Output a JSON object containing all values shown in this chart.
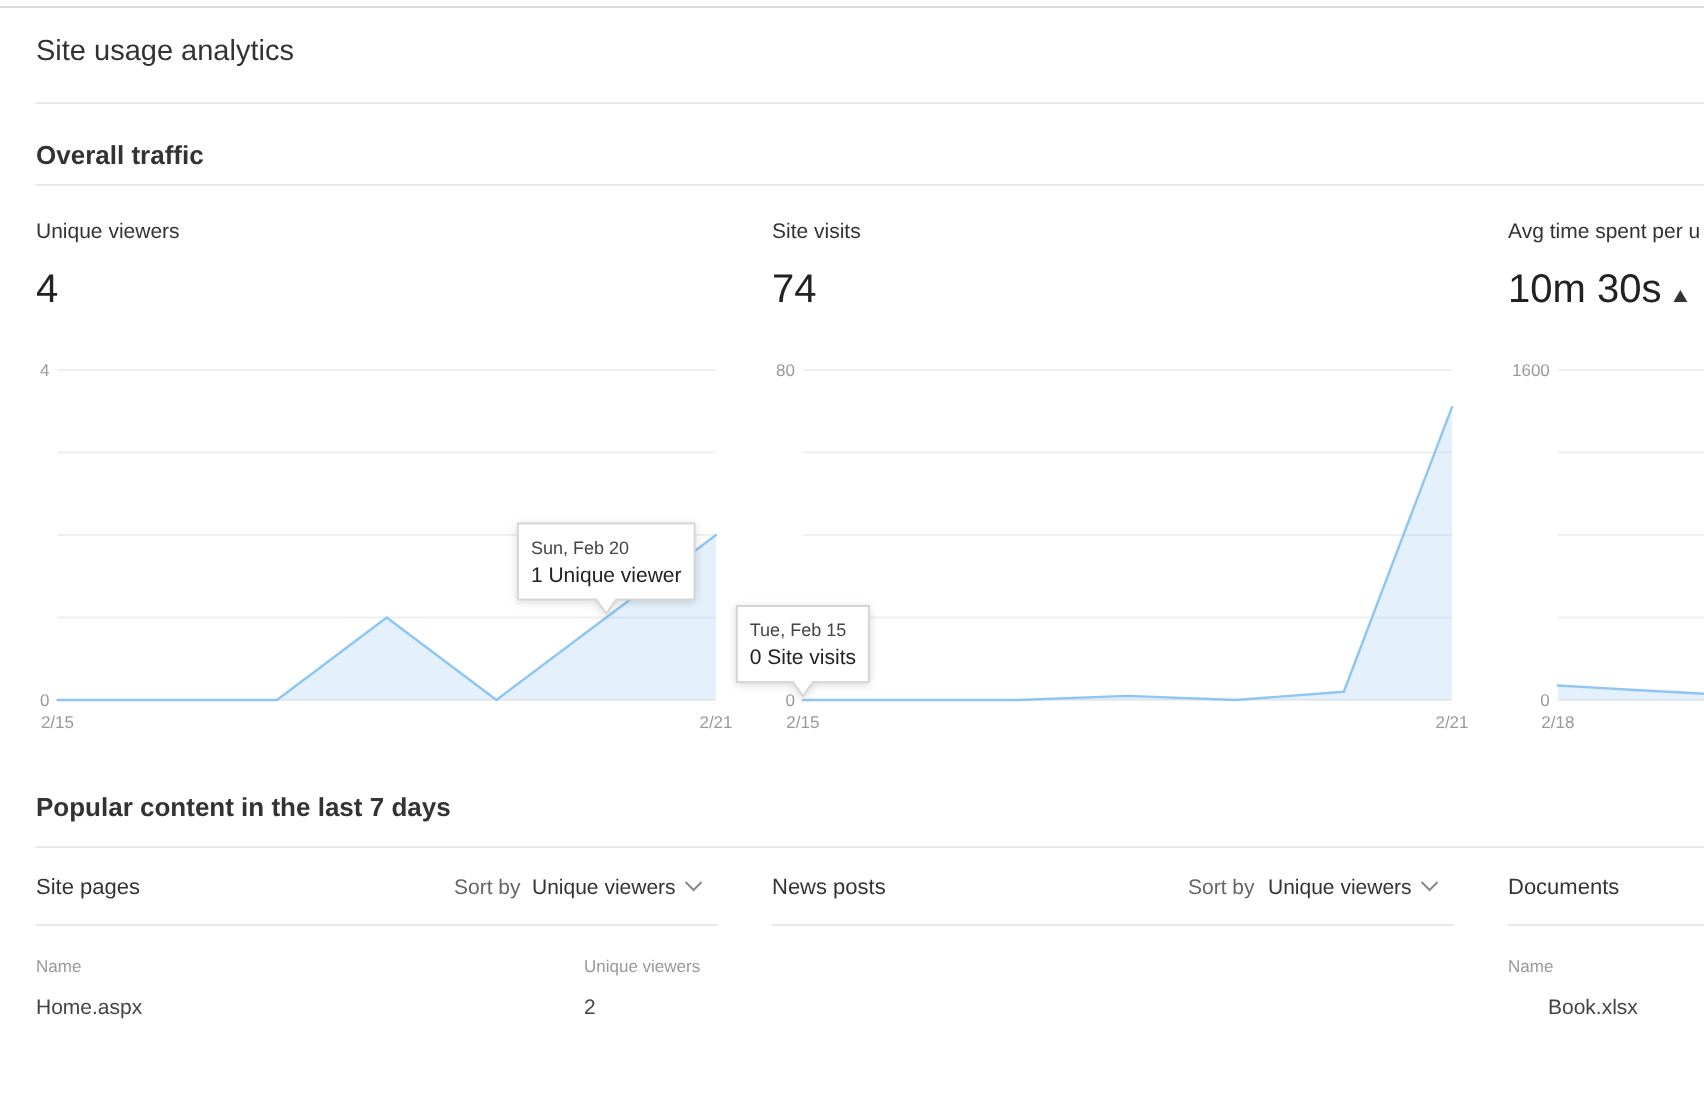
{
  "chart_data": [
    {
      "type": "other",
      "title": "Site usage analytics",
      "subtitle": "Overall traffic"
    },
    {
      "type": "area",
      "title": "Unique viewers",
      "subtitle": "4",
      "x": [
        "--02-15",
        "--02-16",
        "--02-17",
        "--02-18",
        "--02-19",
        "--02-20",
        "--02-21"
      ],
      "values": [
        0,
        0,
        0,
        1,
        0,
        1,
        2
      ],
      "color": "#8ec5f2",
      "xlim": [
        "--02-15",
        "--02-21"
      ],
      "xticks": [
        {
          "value": "--02-15",
          "label": "2/15"
        },
        {
          "value": "--02-21",
          "label": "2/21"
        }
      ],
      "ylim": [
        0,
        4
      ],
      "yticks": [
        0,
        {
          "value": 1,
          "label": null
        },
        {
          "value": 2,
          "label": null
        },
        {
          "value": 3,
          "label": null
        },
        4
      ],
      "grid": "y",
      "annotations": [
        "Sun, Feb 20",
        {
          "text": "1 Unique viewer",
          "x": "--02-20",
          "y": 1
        }
      ]
    },
    {
      "type": "area",
      "title": "Site visits",
      "subtitle": "74",
      "x": [
        "--02-15",
        "--02-16",
        "--02-17",
        "--02-18",
        "--02-19",
        "--02-20",
        "--02-21"
      ],
      "values": [
        0,
        0,
        0,
        1,
        0,
        2,
        71
      ],
      "color": "#8ec5f2",
      "xlim": [
        "--02-15",
        "--02-21"
      ],
      "xticks": [
        {
          "value": "--02-15",
          "label": "2/15"
        },
        {
          "value": "--02-21",
          "label": "2/21"
        }
      ],
      "ylim": [
        0,
        80
      ],
      "yticks": [
        0,
        {
          "value": 20,
          "label": null
        },
        {
          "value": 40,
          "label": null
        },
        {
          "value": 60,
          "label": null
        },
        80
      ],
      "grid": "y",
      "annotations": [
        "Tue, Feb 15",
        {
          "text": "0 Site visits",
          "x": "--02-15",
          "y": 0
        }
      ]
    },
    {
      "type": "area",
      "title": "Avg time spent per u",
      "subtitle": "10m 30s",
      "categories": [
        "2/18",
        null,
        null,
        null,
        null
      ],
      "values": [
        70,
        60,
        50,
        40,
        30
      ],
      "color": "#8ec5f2",
      "ylim": [
        0,
        1600
      ],
      "yticks": [
        0,
        {
          "value": 400,
          "label": null
        },
        {
          "value": 800,
          "label": null
        },
        {
          "value": 1200,
          "label": null
        },
        1600
      ],
      "grid": "y"
    },
    {
      "type": "other",
      "title": "Popular content in the last 7 days",
      "annotations": [
        "Site pages",
        "Sort by",
        "Unique viewers",
        "Name",
        "Unique viewers",
        "Home.aspx",
        "2",
        "News posts",
        "Sort by",
        "Unique viewers",
        "Documents",
        "Name",
        "Book.xlsx"
      ]
    }
  ]
}
